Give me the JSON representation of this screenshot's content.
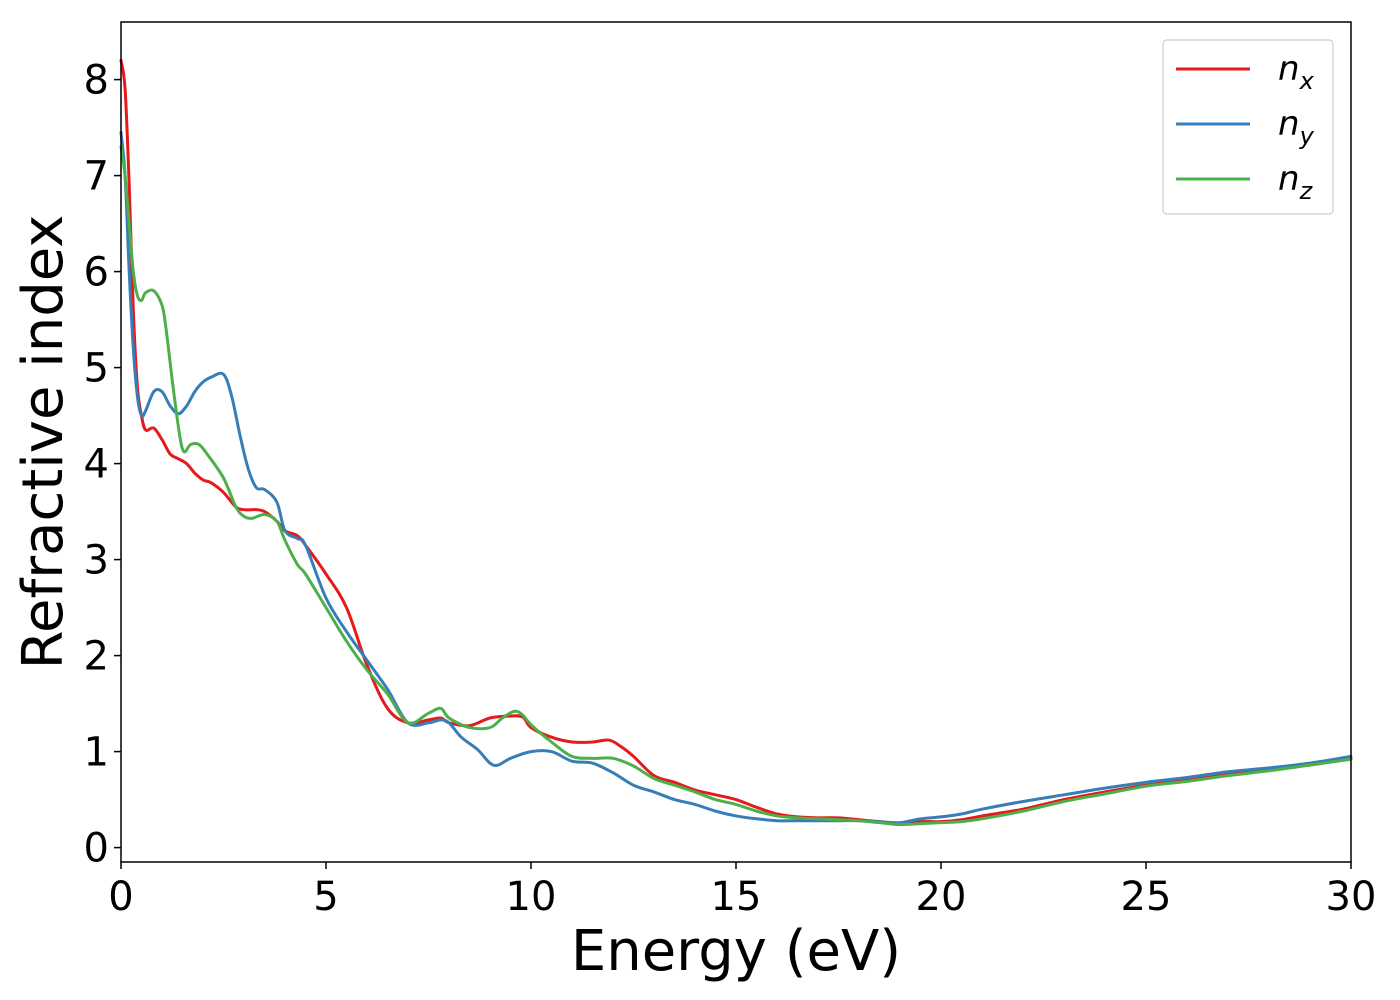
{
  "chart_data": {
    "type": "line",
    "xlabel": "Energy (eV)",
    "ylabel": "Refractive index",
    "xlim": [
      0,
      30
    ],
    "ylim": [
      -0.15,
      8.6
    ],
    "xticks": [
      0,
      5,
      10,
      15,
      20,
      25,
      30
    ],
    "yticks": [
      0,
      1,
      2,
      3,
      4,
      5,
      6,
      7,
      8
    ],
    "grid": false,
    "legend_position": "top-right",
    "series": [
      {
        "name": "n_x",
        "label_main": "n",
        "label_sub": "x",
        "color": "#e41a1c",
        "x": [
          0,
          0.1,
          0.2,
          0.3,
          0.4,
          0.5,
          0.6,
          0.8,
          1.0,
          1.2,
          1.4,
          1.6,
          1.8,
          2.0,
          2.2,
          2.5,
          2.8,
          3.0,
          3.3,
          3.5,
          3.8,
          4.0,
          4.3,
          4.5,
          5.0,
          5.5,
          6.0,
          6.5,
          7.0,
          7.5,
          7.8,
          8.0,
          8.5,
          9.0,
          9.5,
          9.8,
          10.0,
          10.5,
          11.0,
          11.5,
          11.9,
          12.2,
          12.5,
          13.0,
          13.5,
          14.0,
          14.5,
          15.0,
          15.5,
          16.0,
          16.5,
          17.0,
          17.5,
          18.0,
          18.5,
          19.0,
          19.5,
          20.0,
          20.5,
          21.0,
          22.0,
          23.0,
          24.0,
          25.0,
          26.0,
          27.0,
          28.0,
          29.0,
          30.0
        ],
        "values": [
          8.2,
          7.9,
          6.9,
          5.6,
          4.8,
          4.5,
          4.35,
          4.37,
          4.25,
          4.1,
          4.05,
          4.0,
          3.9,
          3.83,
          3.8,
          3.7,
          3.55,
          3.52,
          3.52,
          3.5,
          3.4,
          3.3,
          3.25,
          3.15,
          2.85,
          2.5,
          1.9,
          1.45,
          1.3,
          1.33,
          1.35,
          1.3,
          1.27,
          1.35,
          1.37,
          1.36,
          1.25,
          1.15,
          1.1,
          1.1,
          1.12,
          1.05,
          0.95,
          0.75,
          0.68,
          0.6,
          0.55,
          0.5,
          0.42,
          0.35,
          0.32,
          0.31,
          0.31,
          0.29,
          0.27,
          0.25,
          0.27,
          0.27,
          0.29,
          0.33,
          0.4,
          0.5,
          0.58,
          0.65,
          0.7,
          0.76,
          0.81,
          0.86,
          0.93
        ]
      },
      {
        "name": "n_y",
        "label_main": "n",
        "label_sub": "y",
        "color": "#377eb8",
        "x": [
          0,
          0.1,
          0.2,
          0.3,
          0.4,
          0.5,
          0.6,
          0.8,
          1.0,
          1.2,
          1.4,
          1.6,
          1.8,
          2.0,
          2.2,
          2.5,
          2.7,
          2.9,
          3.1,
          3.3,
          3.5,
          3.8,
          4.0,
          4.3,
          4.5,
          5.0,
          5.5,
          6.0,
          6.5,
          7.0,
          7.5,
          7.8,
          8.0,
          8.3,
          8.7,
          9.0,
          9.2,
          9.5,
          10.0,
          10.5,
          11.0,
          11.5,
          12.0,
          12.5,
          13.0,
          13.5,
          14.0,
          14.5,
          15.0,
          15.5,
          16.0,
          16.5,
          17.0,
          17.5,
          18.0,
          18.5,
          19.0,
          19.5,
          20.0,
          20.5,
          21.0,
          22.0,
          23.0,
          24.0,
          25.0,
          26.0,
          27.0,
          28.0,
          29.0,
          30.0
        ],
        "values": [
          7.45,
          7.0,
          6.0,
          5.2,
          4.7,
          4.5,
          4.55,
          4.75,
          4.75,
          4.6,
          4.52,
          4.6,
          4.75,
          4.85,
          4.9,
          4.93,
          4.7,
          4.3,
          3.95,
          3.75,
          3.73,
          3.6,
          3.3,
          3.22,
          3.15,
          2.6,
          2.25,
          1.95,
          1.65,
          1.3,
          1.3,
          1.33,
          1.3,
          1.15,
          1.02,
          0.88,
          0.86,
          0.93,
          1.0,
          1.0,
          0.9,
          0.88,
          0.78,
          0.65,
          0.58,
          0.5,
          0.45,
          0.38,
          0.33,
          0.3,
          0.28,
          0.28,
          0.28,
          0.28,
          0.28,
          0.27,
          0.26,
          0.3,
          0.32,
          0.35,
          0.4,
          0.48,
          0.55,
          0.62,
          0.68,
          0.73,
          0.79,
          0.83,
          0.88,
          0.95
        ]
      },
      {
        "name": "n_z",
        "label_main": "n",
        "label_sub": "z",
        "color": "#4daf4a",
        "x": [
          0,
          0.1,
          0.2,
          0.3,
          0.4,
          0.5,
          0.6,
          0.8,
          1.0,
          1.1,
          1.3,
          1.5,
          1.7,
          1.9,
          2.1,
          2.5,
          2.8,
          3.0,
          3.2,
          3.5,
          3.8,
          4.0,
          4.3,
          4.5,
          5.0,
          5.5,
          6.0,
          6.5,
          7.0,
          7.5,
          7.8,
          8.0,
          8.5,
          9.0,
          9.3,
          9.6,
          9.8,
          10.0,
          10.5,
          11.0,
          11.5,
          12.0,
          12.5,
          13.0,
          13.5,
          14.0,
          14.5,
          15.0,
          15.5,
          16.0,
          16.5,
          17.0,
          17.5,
          18.0,
          18.5,
          19.0,
          19.5,
          20.0,
          20.5,
          21.0,
          22.0,
          23.0,
          24.0,
          25.0,
          26.0,
          27.0,
          28.0,
          29.0,
          30.0
        ],
        "values": [
          7.3,
          7.0,
          6.5,
          6.0,
          5.75,
          5.7,
          5.78,
          5.8,
          5.65,
          5.4,
          4.7,
          4.15,
          4.2,
          4.2,
          4.1,
          3.85,
          3.55,
          3.45,
          3.43,
          3.47,
          3.4,
          3.2,
          2.95,
          2.85,
          2.5,
          2.15,
          1.85,
          1.6,
          1.3,
          1.4,
          1.45,
          1.35,
          1.25,
          1.25,
          1.35,
          1.42,
          1.38,
          1.28,
          1.1,
          0.95,
          0.93,
          0.93,
          0.85,
          0.72,
          0.65,
          0.58,
          0.5,
          0.45,
          0.38,
          0.33,
          0.31,
          0.3,
          0.29,
          0.28,
          0.26,
          0.24,
          0.25,
          0.26,
          0.27,
          0.3,
          0.38,
          0.48,
          0.56,
          0.64,
          0.69,
          0.75,
          0.8,
          0.86,
          0.92
        ]
      }
    ]
  }
}
